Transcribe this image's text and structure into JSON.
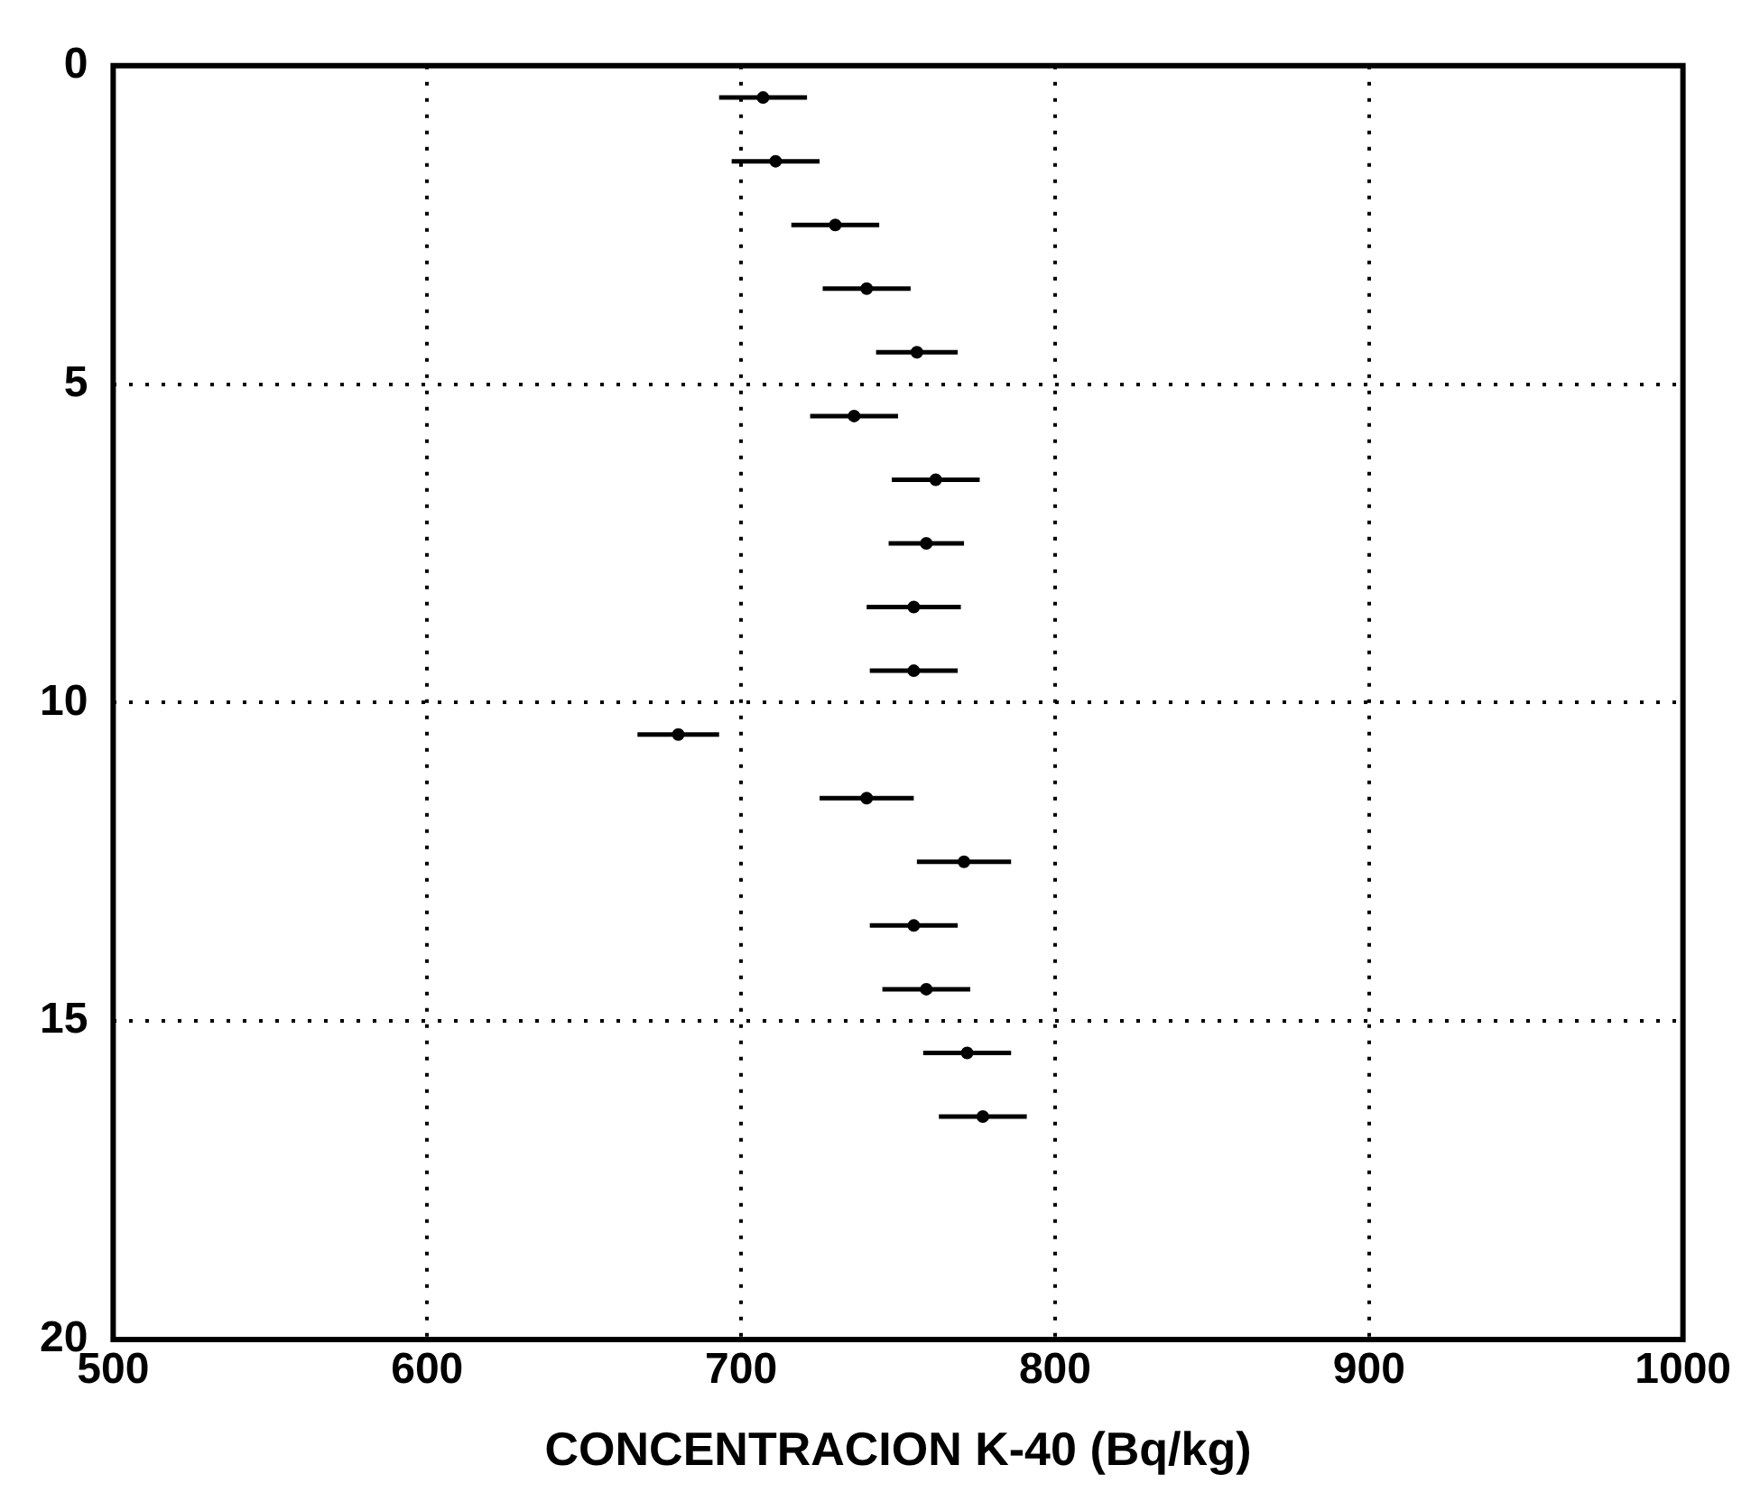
{
  "chart_data": {
    "type": "scatter",
    "xlabel": "CONCENTRACION K-40 (Bq/kg)",
    "x": [
      707,
      711,
      730,
      740,
      756,
      736,
      762,
      759,
      755,
      755,
      680,
      740,
      771,
      755,
      759,
      772,
      777
    ],
    "values": [
      0.5,
      1.5,
      2.5,
      3.5,
      4.5,
      5.5,
      6.5,
      7.5,
      8.5,
      9.5,
      10.5,
      11.5,
      12.5,
      13.5,
      14.5,
      15.5,
      16.5
    ],
    "xerrors": [
      14,
      14,
      14,
      14,
      13,
      14,
      14,
      12,
      15,
      14,
      13,
      15,
      15,
      14,
      14,
      14,
      14
    ],
    "color": "#000000",
    "marker": "circle",
    "xlim": [
      500,
      1000
    ],
    "xticks": [
      500,
      600,
      700,
      800,
      900,
      1000
    ],
    "ylim": [
      20,
      0
    ],
    "yticks": [
      0,
      5,
      10,
      15,
      20
    ],
    "grid": true,
    "legend": false
  }
}
